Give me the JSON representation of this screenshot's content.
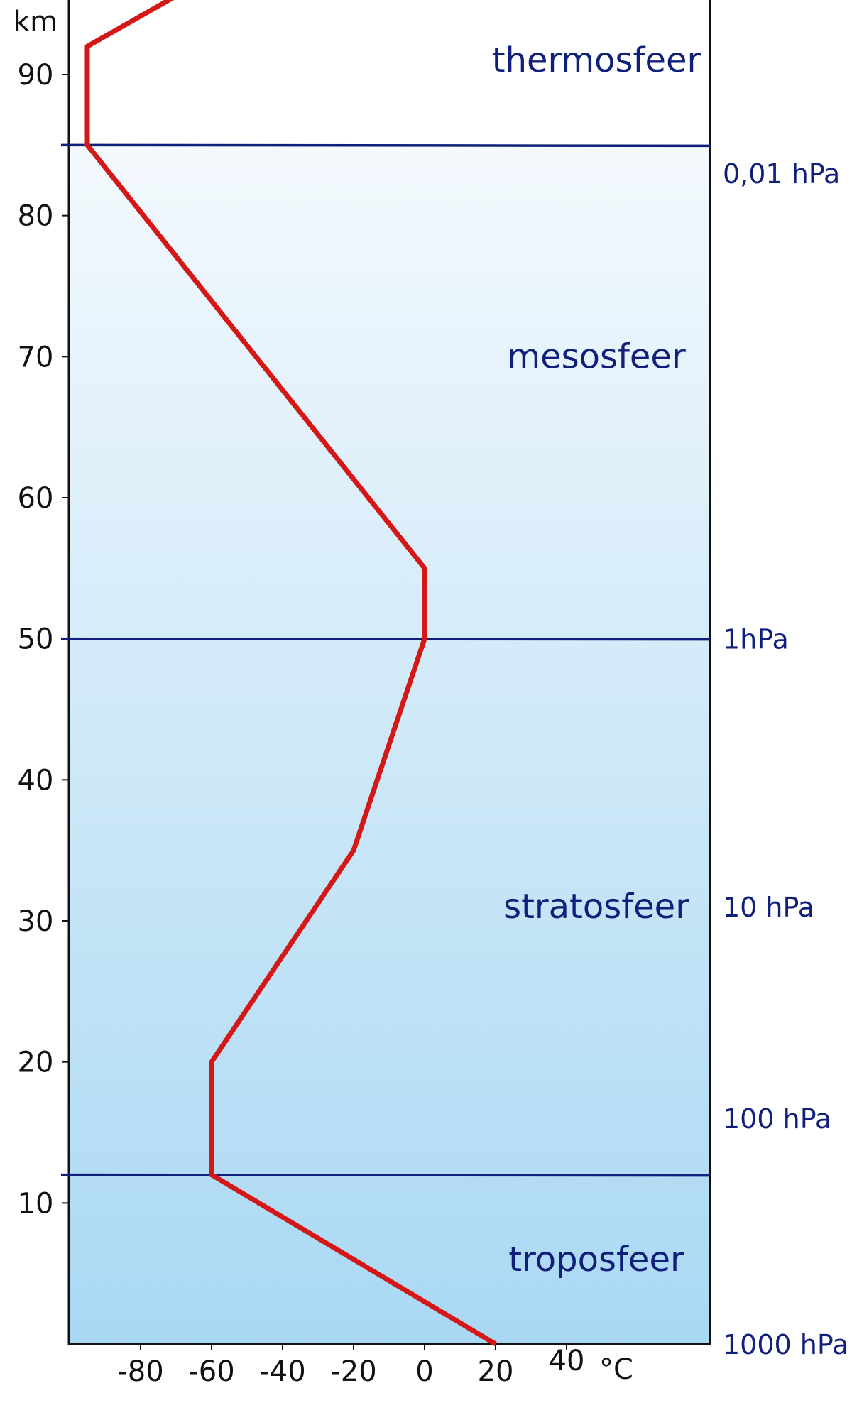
{
  "chart_data": {
    "type": "line",
    "title": "",
    "xlabel": "",
    "ylabel": "",
    "x_unit": "°C",
    "y_unit": "km",
    "xlim": [
      -100,
      40
    ],
    "ylim": [
      0,
      95
    ],
    "x_ticks": [
      -80,
      -60,
      -40,
      -20,
      0,
      20,
      40
    ],
    "y_ticks": [
      10,
      20,
      30,
      40,
      50,
      60,
      70,
      80,
      90
    ],
    "series": [
      {
        "x": [
          20,
          -60,
          -60,
          -20,
          0,
          0,
          -95,
          -95,
          -67
        ],
        "y": [
          0,
          12,
          20,
          35,
          50,
          55,
          85,
          92,
          96
        ],
        "color": "#d41818"
      }
    ],
    "boundaries": [
      {
        "altitude_km": 12,
        "pressure_label": ""
      },
      {
        "altitude_km": 50,
        "pressure_label": "1hPa"
      },
      {
        "altitude_km": 85,
        "pressure_label": "0,01 hPa"
      }
    ],
    "pressure_labels": [
      {
        "altitude_km": 0,
        "label": "1000 hPa"
      },
      {
        "altitude_km": 16,
        "label": "100 hPa"
      },
      {
        "altitude_km": 31,
        "label": "10 hPa"
      },
      {
        "altitude_km": 50,
        "label": "1hPa"
      },
      {
        "altitude_km": 83,
        "label": "0,01 hPa"
      }
    ],
    "layers": [
      {
        "name": "troposfeer",
        "altitude_km": 6
      },
      {
        "name": "stratosfeer",
        "altitude_km": 31
      },
      {
        "name": "mesosfeer",
        "altitude_km": 70
      },
      {
        "name": "thermosfeer",
        "altitude_km": 91
      }
    ],
    "colors": {
      "curve": "#d41818",
      "boundary": "#0f1f7a",
      "layer_text": "#0f1f7a",
      "background_top": "#f4f9fd",
      "background_bottom": "#a9d8f3",
      "axis": "#111111"
    }
  }
}
